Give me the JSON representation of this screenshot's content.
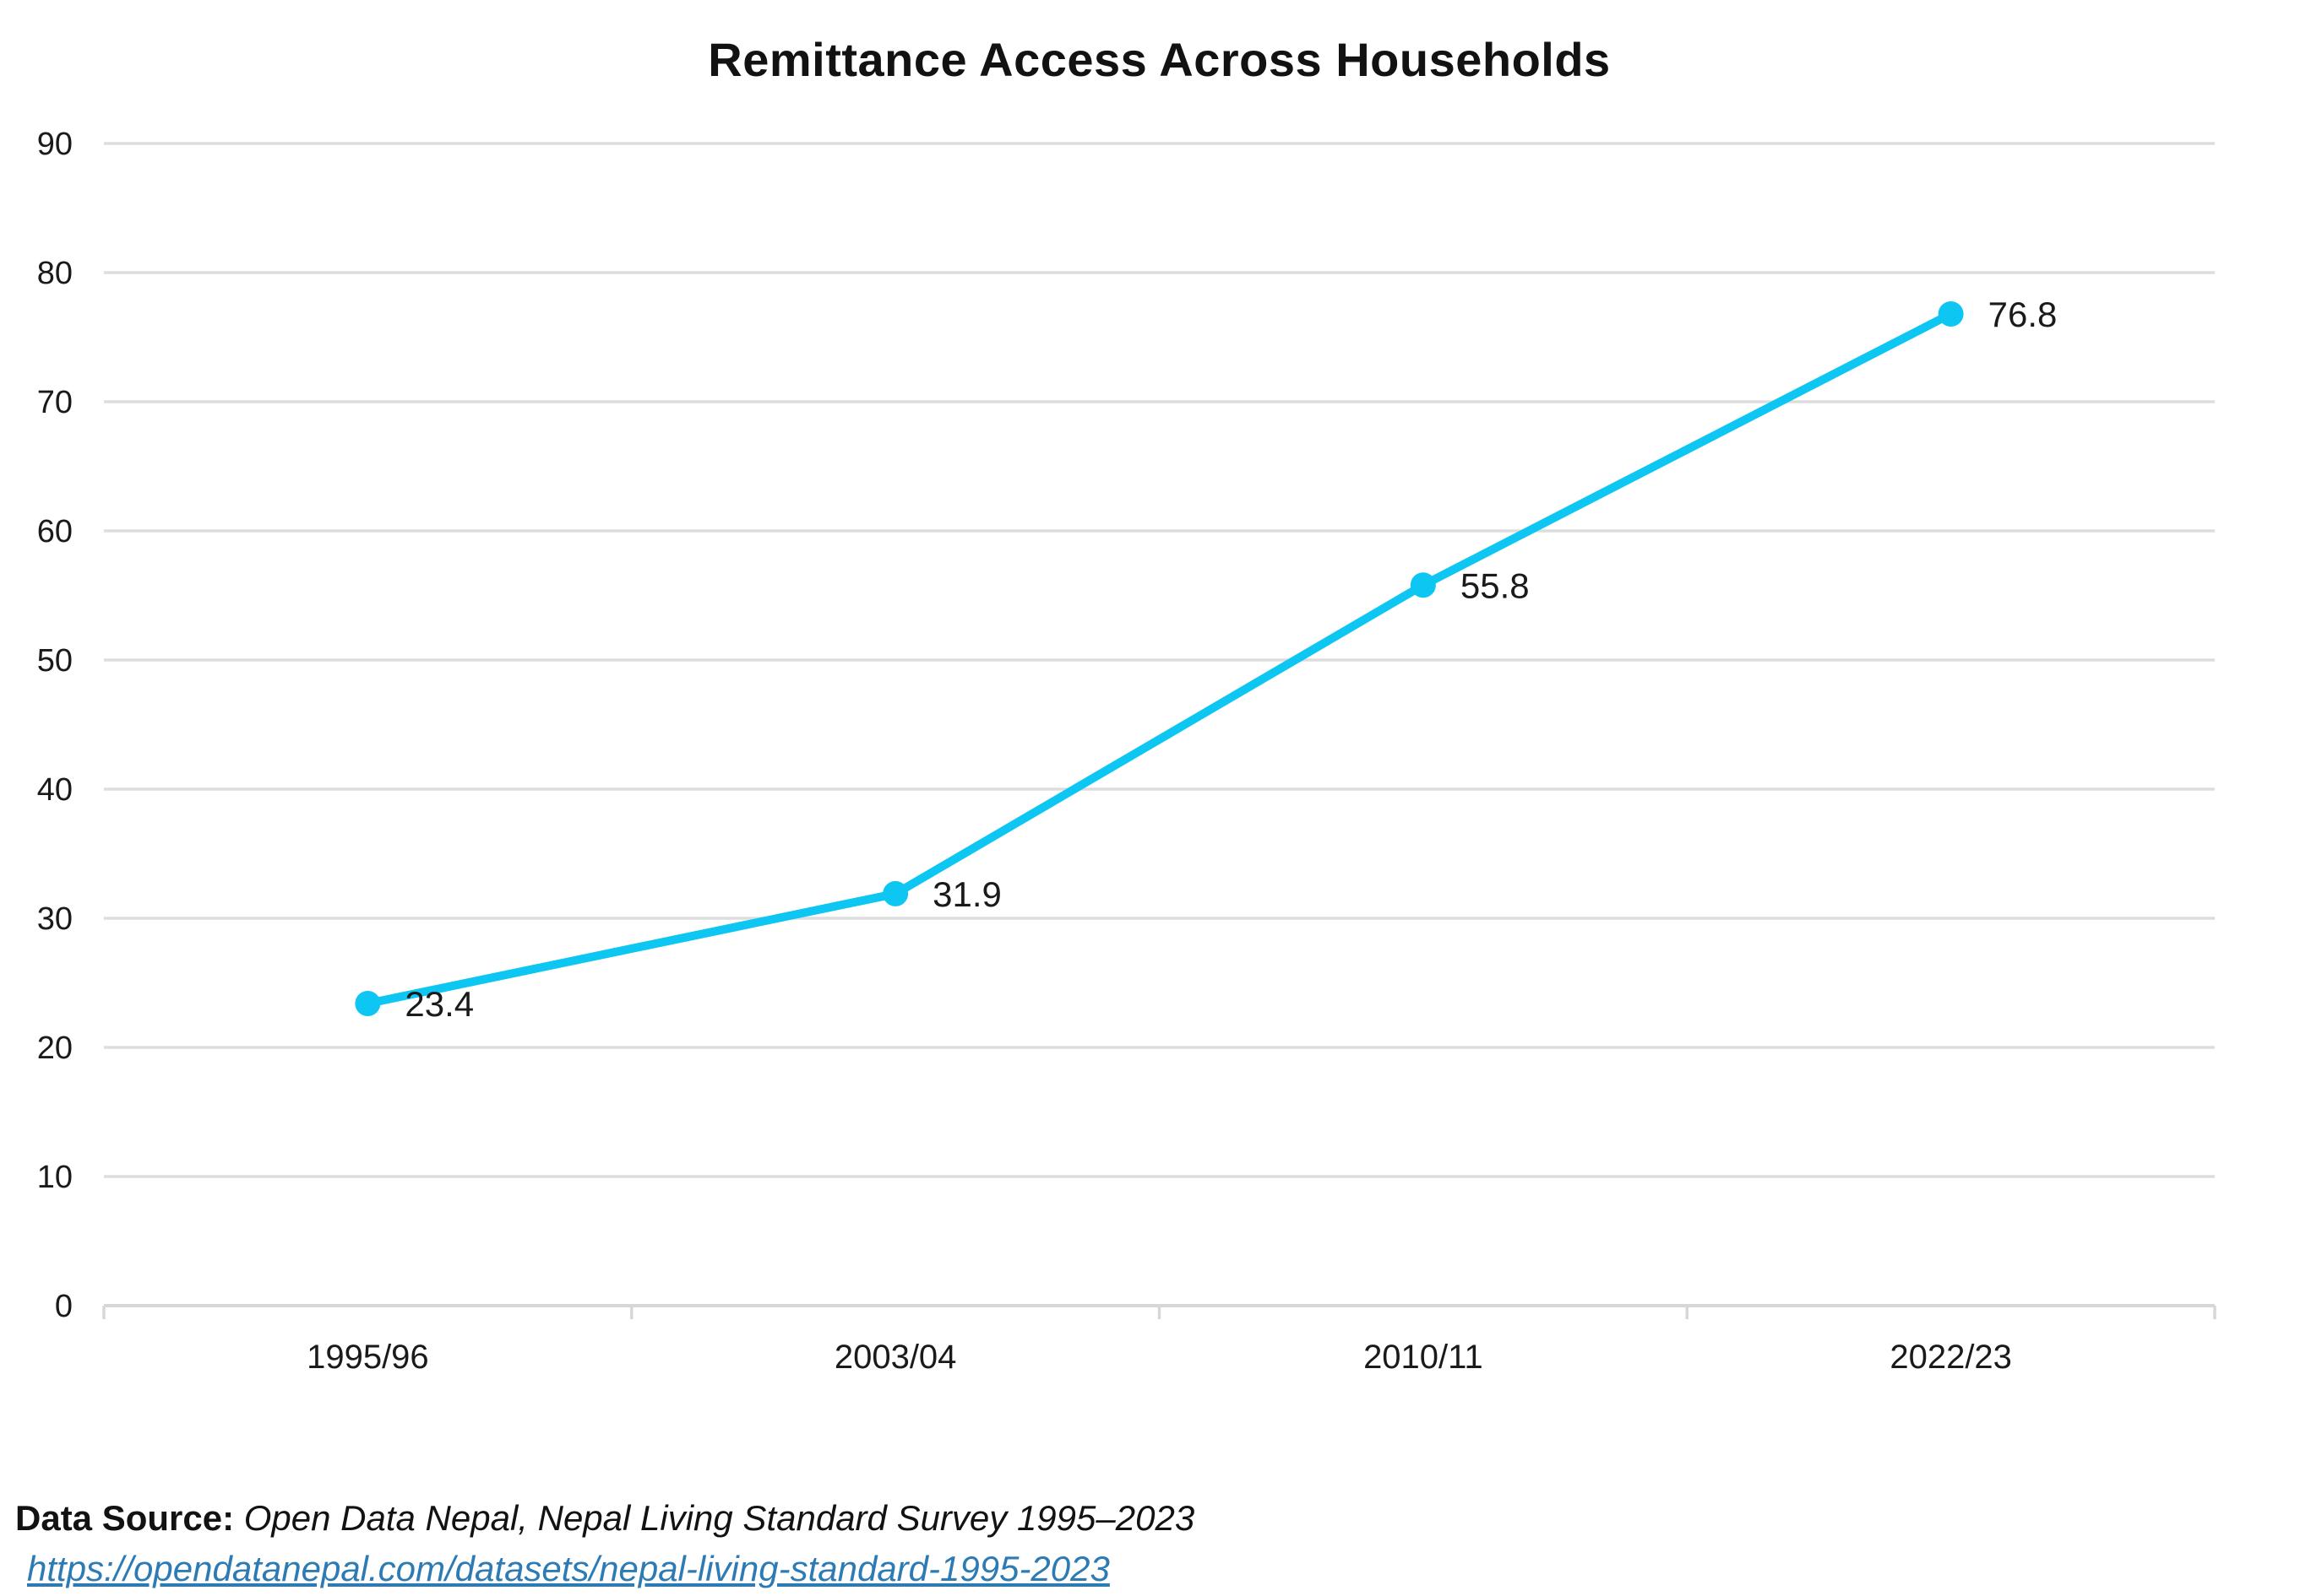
{
  "title": "Remittance Access Across Households",
  "footer": {
    "label": "Data Source:",
    "source": " Open Data Nepal, Nepal Living Standard Survey 1995–2023",
    "link": "https://opendatanepal.com/datasets/nepal-living-standard-1995-2023"
  },
  "colors": {
    "line": "#0EC6F2",
    "grid": "#DDDDDD",
    "axis": "#D7D7D7",
    "text": "#1A1A1A",
    "link": "#2D7BB5"
  },
  "chart_data": {
    "type": "line",
    "title": "Remittance Access Across Households",
    "categories": [
      "1995/96",
      "2003/04",
      "2010/11",
      "2022/23"
    ],
    "values": [
      23.4,
      31.9,
      55.8,
      76.8
    ],
    "data_labels": [
      "23.4",
      "31.9",
      "55.8",
      "76.8"
    ],
    "xlabel": "",
    "ylabel": "",
    "ylim": [
      0,
      90
    ],
    "ytick_interval": 10,
    "yticks": [
      0,
      10,
      20,
      30,
      40,
      50,
      60,
      70,
      80,
      90
    ],
    "grid": true,
    "legend": false,
    "marker": "circle",
    "data_label_position": "right-of-point"
  }
}
